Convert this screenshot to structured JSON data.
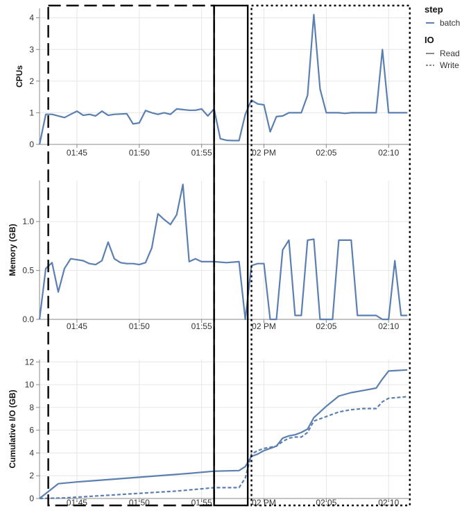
{
  "chart_data": {
    "type": "line",
    "x_unit": "time",
    "x_ticks": [
      "01:45",
      "01:50",
      "01:55",
      "02 PM",
      "02:05",
      "02:10"
    ],
    "legend": {
      "groups": [
        {
          "title": "step",
          "entries": [
            {
              "label": "batch",
              "style": "solid"
            }
          ]
        },
        {
          "title": "IO",
          "entries": [
            {
              "label": "Read",
              "style": "solid"
            },
            {
              "label": "Write",
              "style": "dashed"
            }
          ]
        }
      ],
      "position": "top-right"
    },
    "line_color": "#5b7fb0",
    "panels": [
      {
        "ylabel": "CPUs",
        "ylim": [
          0,
          4.3
        ],
        "y_ticks": [
          "0",
          "1",
          "2",
          "3",
          "4"
        ],
        "series": [
          {
            "style": "solid",
            "points": [
              [
                "01:42",
                0
              ],
              [
                "01:42.5",
                0.95
              ],
              [
                "01:43",
                0.95
              ],
              [
                "01:44",
                0.85
              ],
              [
                "01:44.5",
                0.95
              ],
              [
                "01:45",
                1.05
              ],
              [
                "01:45.5",
                0.92
              ],
              [
                "01:46",
                0.95
              ],
              [
                "01:46.5",
                0.9
              ],
              [
                "01:47",
                1.05
              ],
              [
                "01:47.5",
                0.92
              ],
              [
                "01:48",
                0.95
              ],
              [
                "01:49",
                0.97
              ],
              [
                "01:49.5",
                0.65
              ],
              [
                "01:50",
                0.68
              ],
              [
                "01:50.5",
                1.07
              ],
              [
                "01:51",
                1.0
              ],
              [
                "01:51.5",
                0.95
              ],
              [
                "01:52",
                1.0
              ],
              [
                "01:52.5",
                0.95
              ],
              [
                "01:53",
                1.12
              ],
              [
                "01:54",
                1.08
              ],
              [
                "01:54.5",
                1.08
              ],
              [
                "01:55",
                1.12
              ],
              [
                "01:55.5",
                0.9
              ],
              [
                "01:56",
                1.12
              ],
              [
                "01:56.5",
                0.18
              ],
              [
                "01:57",
                0.13
              ],
              [
                "01:57.5",
                0.12
              ],
              [
                "01:58",
                0.12
              ],
              [
                "01:58.5",
                0.95
              ],
              [
                "01:59",
                1.4
              ],
              [
                "01:59.5",
                1.28
              ],
              [
                "02:00",
                1.25
              ],
              [
                "02:00.5",
                0.4
              ],
              [
                "02:01",
                0.88
              ],
              [
                "02:01.5",
                0.9
              ],
              [
                "02:02",
                1.0
              ],
              [
                "02:03",
                1.0
              ],
              [
                "02:03.5",
                1.55
              ],
              [
                "02:04",
                4.1
              ],
              [
                "02:04.5",
                1.75
              ],
              [
                "02:05",
                1.0
              ],
              [
                "02:06",
                1.0
              ],
              [
                "02:06.5",
                0.98
              ],
              [
                "02:07",
                1.0
              ],
              [
                "02:08",
                1.0
              ],
              [
                "02:09",
                1.0
              ],
              [
                "02:09.5",
                3.0
              ],
              [
                "02:10",
                1.0
              ],
              [
                "02:11",
                1.0
              ],
              [
                "02:11.5",
                1.0
              ]
            ]
          }
        ]
      },
      {
        "ylabel": "Memory (GB)",
        "ylim": [
          0,
          1.42
        ],
        "y_ticks": [
          "0.0",
          "0.5",
          "1.0"
        ],
        "series": [
          {
            "style": "solid",
            "points": [
              [
                "01:42",
                0
              ],
              [
                "01:42.5",
                0.52
              ],
              [
                "01:43",
                0.58
              ],
              [
                "01:43.5",
                0.28
              ],
              [
                "01:44",
                0.52
              ],
              [
                "01:44.5",
                0.62
              ],
              [
                "01:45",
                0.61
              ],
              [
                "01:45.5",
                0.6
              ],
              [
                "01:46",
                0.57
              ],
              [
                "01:46.5",
                0.56
              ],
              [
                "01:47",
                0.6
              ],
              [
                "01:47.5",
                0.79
              ],
              [
                "01:48",
                0.62
              ],
              [
                "01:48.5",
                0.58
              ],
              [
                "01:49",
                0.57
              ],
              [
                "01:49.5",
                0.57
              ],
              [
                "01:50",
                0.56
              ],
              [
                "01:50.5",
                0.58
              ],
              [
                "01:51",
                0.73
              ],
              [
                "01:51.5",
                1.08
              ],
              [
                "01:52",
                1.02
              ],
              [
                "01:52.5",
                0.97
              ],
              [
                "01:53",
                1.07
              ],
              [
                "01:53.5",
                1.38
              ],
              [
                "01:54",
                0.59
              ],
              [
                "01:54.5",
                0.62
              ],
              [
                "01:55",
                0.59
              ],
              [
                "01:56",
                0.59
              ],
              [
                "01:57",
                0.58
              ],
              [
                "01:58",
                0.59
              ],
              [
                "01:58.5",
                0
              ],
              [
                "01:59",
                0.55
              ],
              [
                "01:59.5",
                0.57
              ],
              [
                "02:00",
                0.57
              ],
              [
                "02:00.5",
                0
              ],
              [
                "02:01",
                0
              ],
              [
                "02:01.5",
                0.71
              ],
              [
                "02:02",
                0.81
              ],
              [
                "02:02.5",
                0.04
              ],
              [
                "02:03",
                0.04
              ],
              [
                "02:03.5",
                0.81
              ],
              [
                "02:04",
                0.82
              ],
              [
                "02:04.5",
                0
              ],
              [
                "02:05",
                0
              ],
              [
                "02:05.5",
                0
              ],
              [
                "02:06",
                0.81
              ],
              [
                "02:06.5",
                0.81
              ],
              [
                "02:07",
                0.81
              ],
              [
                "02:07.5",
                0.04
              ],
              [
                "02:08",
                0.04
              ],
              [
                "02:09",
                0.04
              ],
              [
                "02:09.5",
                0
              ],
              [
                "02:10",
                0
              ],
              [
                "02:10.5",
                0.6
              ],
              [
                "02:11",
                0.04
              ],
              [
                "02:11.5",
                0.04
              ]
            ]
          }
        ]
      },
      {
        "ylabel": "Cumulative I/O (GB)",
        "ylim": [
          0,
          12.2
        ],
        "y_ticks": [
          "0",
          "2",
          "4",
          "6",
          "8",
          "10",
          "12"
        ],
        "series": [
          {
            "name": "Read",
            "style": "solid",
            "points": [
              [
                "01:42",
                0
              ],
              [
                "01:43.5",
                1.3
              ],
              [
                "01:45",
                1.45
              ],
              [
                "01:48",
                1.7
              ],
              [
                "01:51",
                1.95
              ],
              [
                "01:54",
                2.2
              ],
              [
                "01:56",
                2.4
              ],
              [
                "01:58",
                2.45
              ],
              [
                "01:58.5",
                2.8
              ],
              [
                "01:59",
                3.7
              ],
              [
                "01:59.5",
                3.9
              ],
              [
                "02:00",
                4.2
              ],
              [
                "02:01",
                4.6
              ],
              [
                "02:01.5",
                5.3
              ],
              [
                "02:02",
                5.5
              ],
              [
                "02:02.5",
                5.6
              ],
              [
                "02:03",
                5.8
              ],
              [
                "02:03.5",
                6.1
              ],
              [
                "02:04",
                7.1
              ],
              [
                "02:05",
                8.1
              ],
              [
                "02:06",
                9.0
              ],
              [
                "02:07",
                9.3
              ],
              [
                "02:08",
                9.5
              ],
              [
                "02:09",
                9.7
              ],
              [
                "02:09.5",
                10.5
              ],
              [
                "02:10",
                11.2
              ],
              [
                "02:11.5",
                11.3
              ]
            ]
          },
          {
            "name": "Write",
            "style": "dashed",
            "points": [
              [
                "01:42",
                0
              ],
              [
                "01:44",
                0.05
              ],
              [
                "01:47",
                0.25
              ],
              [
                "01:50",
                0.45
              ],
              [
                "01:53",
                0.65
              ],
              [
                "01:55",
                0.85
              ],
              [
                "01:56",
                0.95
              ],
              [
                "01:58",
                0.95
              ],
              [
                "01:58.5",
                1.8
              ],
              [
                "01:59",
                3.9
              ],
              [
                "01:59.5",
                4.2
              ],
              [
                "02:00",
                4.4
              ],
              [
                "02:01",
                4.6
              ],
              [
                "02:01.5",
                5.0
              ],
              [
                "02:02",
                5.3
              ],
              [
                "02:02.5",
                5.4
              ],
              [
                "02:03",
                5.4
              ],
              [
                "02:03.5",
                5.8
              ],
              [
                "02:04",
                6.8
              ],
              [
                "02:05",
                7.2
              ],
              [
                "02:06",
                7.6
              ],
              [
                "02:07",
                7.8
              ],
              [
                "02:08",
                7.9
              ],
              [
                "02:09",
                7.9
              ],
              [
                "02:09.5",
                8.5
              ],
              [
                "02:10",
                8.8
              ],
              [
                "02:11.5",
                8.95
              ]
            ]
          }
        ]
      }
    ],
    "annotations": [
      {
        "style": "long-dash",
        "x_range": [
          "01:42.7",
          "01:56"
        ]
      },
      {
        "style": "solid",
        "x_range": [
          "01:56",
          "01:58.7"
        ]
      },
      {
        "style": "dotted",
        "x_range": [
          "01:59",
          "02:11.7"
        ]
      }
    ]
  }
}
